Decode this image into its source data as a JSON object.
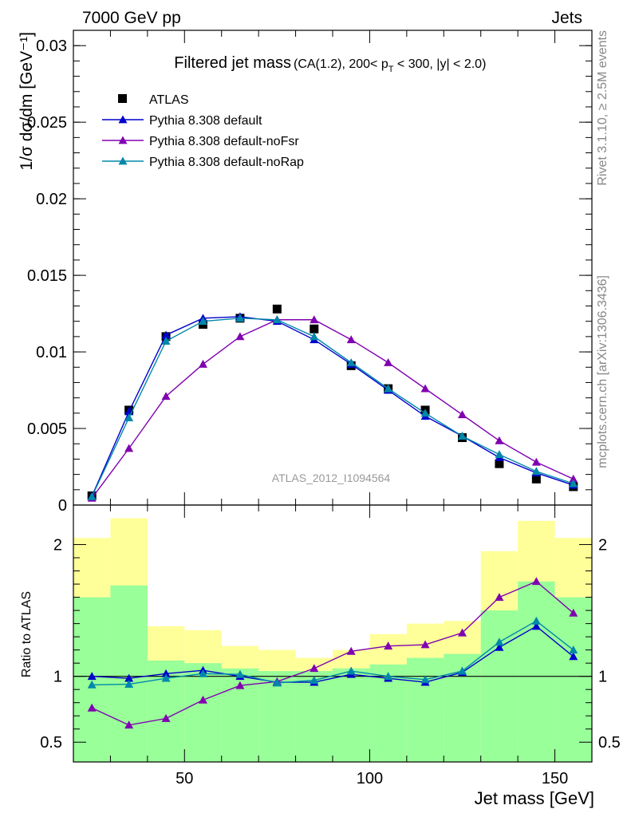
{
  "header": {
    "left": "7000 GeV pp",
    "right": "Jets"
  },
  "side_text": {
    "rivet": "Rivet 3.1.10, ≥ 2.5M events",
    "mcplots": "mcplots.cern.ch [arXiv:1306.3436]"
  },
  "watermark": "ATLAS_2012_I1094564",
  "colors": {
    "atlas": "#000000",
    "default": "#0000cc",
    "noFsr": "#8000b0",
    "noRap": "#0088aa",
    "band_inner": "#99ff99",
    "band_outer": "#ffff99",
    "ref_line": "#000000"
  },
  "chart_data": [
    {
      "type": "line",
      "title": "Filtered jet mass",
      "title_suffix": "(CA(1.2), 200< p_T < 300, |y| < 2.0)",
      "ylabel": "1/σ dσ/dm [GeV⁻¹]",
      "xlabel": "",
      "xlim": [
        20,
        160
      ],
      "ylim": [
        0,
        0.031
      ],
      "yticks": [
        {
          "v": 0,
          "label": "0"
        },
        {
          "v": 0.005,
          "label": "0.005"
        },
        {
          "v": 0.01,
          "label": "0.01"
        },
        {
          "v": 0.015,
          "label": "0.015"
        },
        {
          "v": 0.02,
          "label": "0.02"
        },
        {
          "v": 0.025,
          "label": "0.025"
        },
        {
          "v": 0.03,
          "label": "0.03"
        }
      ],
      "legend_position": "top-left",
      "x": [
        25,
        35,
        45,
        55,
        65,
        75,
        85,
        95,
        105,
        115,
        125,
        135,
        145,
        155
      ],
      "series": [
        {
          "name": "ATLAS",
          "marker": "square",
          "values": [
            0.0006,
            0.0062,
            0.011,
            0.0118,
            0.0122,
            0.0128,
            0.0115,
            0.0091,
            0.0076,
            0.0062,
            0.0044,
            0.0027,
            0.0017,
            0.0012
          ]
        },
        {
          "name": "Pythia 8.308 default",
          "marker": "triangle",
          "values": [
            0.00058,
            0.0061,
            0.0111,
            0.0122,
            0.0123,
            0.012,
            0.0108,
            0.0092,
            0.0075,
            0.0058,
            0.0045,
            0.0031,
            0.0021,
            0.0013
          ]
        },
        {
          "name": "Pythia 8.308 default-noFsr",
          "marker": "triangle",
          "values": [
            0.00045,
            0.0037,
            0.0071,
            0.0092,
            0.011,
            0.0121,
            0.0121,
            0.0108,
            0.0093,
            0.0076,
            0.0059,
            0.0042,
            0.0028,
            0.0017
          ]
        },
        {
          "name": "Pythia 8.308 default-noRap",
          "marker": "triangle",
          "values": [
            0.00055,
            0.0057,
            0.0107,
            0.012,
            0.0122,
            0.0121,
            0.011,
            0.0093,
            0.0076,
            0.006,
            0.0045,
            0.0033,
            0.0022,
            0.0014
          ]
        }
      ]
    },
    {
      "type": "line",
      "ylabel": "Ratio to ATLAS",
      "xlabel": "Jet mass [GeV]",
      "xlim": [
        20,
        160
      ],
      "ylim": [
        0.35,
        2.3
      ],
      "xticks": [
        {
          "v": 50,
          "label": "50"
        },
        {
          "v": 100,
          "label": "100"
        },
        {
          "v": 150,
          "label": "150"
        }
      ],
      "yticks": [
        {
          "v": 0.5,
          "label": "0.5"
        },
        {
          "v": 1,
          "label": "1"
        },
        {
          "v": 2,
          "label": "2"
        }
      ],
      "x": [
        25,
        35,
        45,
        55,
        65,
        75,
        85,
        95,
        105,
        115,
        125,
        135,
        145,
        155
      ],
      "bands": {
        "edges": [
          20,
          30,
          40,
          50,
          60,
          70,
          80,
          90,
          100,
          110,
          120,
          130,
          140,
          150,
          160
        ],
        "inner_low": [
          0.35,
          0.35,
          0.35,
          0.35,
          0.35,
          0.35,
          0.35,
          0.35,
          0.35,
          0.35,
          0.35,
          0.35,
          0.35,
          0.35
        ],
        "inner_high": [
          1.6,
          1.69,
          1.12,
          1.1,
          1.06,
          1.04,
          1.04,
          1.06,
          1.09,
          1.14,
          1.17,
          1.5,
          1.72,
          1.6
        ],
        "outer_low": [
          0.35,
          0.58,
          0.35,
          0.82,
          0.9,
          0.9,
          0.89,
          0.84,
          0.8,
          0.8,
          0.72,
          0.72,
          0.56,
          0.35
        ],
        "outer_high": [
          2.05,
          2.2,
          1.38,
          1.35,
          1.23,
          1.2,
          1.14,
          1.2,
          1.32,
          1.4,
          1.42,
          1.95,
          2.18,
          2.05
        ]
      },
      "series": [
        {
          "name": "Pythia 8.308 default",
          "values": [
            1.0,
            0.985,
            1.02,
            1.045,
            1.0,
            0.955,
            0.955,
            1.015,
            0.985,
            0.955,
            1.03,
            1.22,
            1.38,
            1.15
          ]
        },
        {
          "name": "Pythia 8.308 default-noFsr",
          "values": [
            0.76,
            0.63,
            0.68,
            0.82,
            0.93,
            0.96,
            1.06,
            1.19,
            1.23,
            1.24,
            1.33,
            1.6,
            1.72,
            1.48
          ]
        },
        {
          "name": "Pythia 8.308 default-noRap",
          "values": [
            0.935,
            0.94,
            0.985,
            1.02,
            1.015,
            0.95,
            0.97,
            1.04,
            1.0,
            0.975,
            1.04,
            1.26,
            1.42,
            1.2
          ]
        }
      ]
    }
  ]
}
